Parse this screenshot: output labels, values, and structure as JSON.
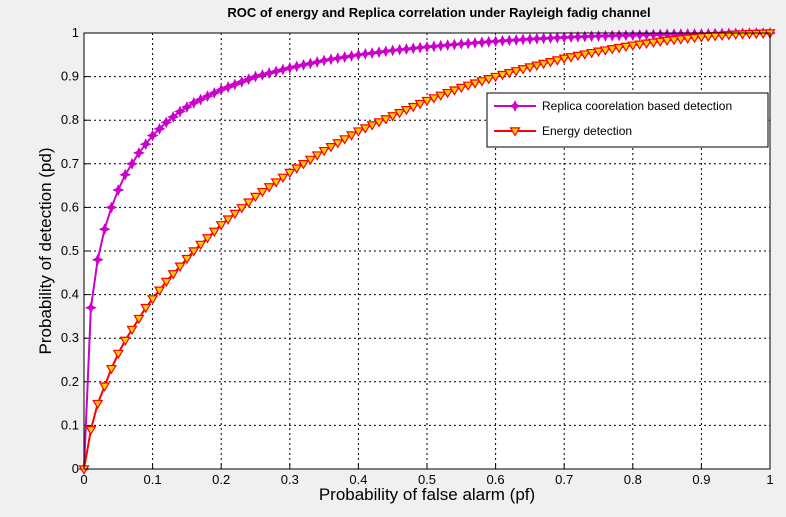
{
  "chart_data": {
    "type": "line",
    "title": "ROC  of energy and Replica correlation under Rayleigh fadig channel",
    "xlabel": "Probability of false alarm (pf)",
    "ylabel": "Probability of detection (pd)",
    "xlim": [
      0,
      1
    ],
    "ylim": [
      0,
      1
    ],
    "xticks": [
      "0",
      "0.1",
      "0.2",
      "0.3",
      "0.4",
      "0.5",
      "0.6",
      "0.7",
      "0.8",
      "0.9",
      "1"
    ],
    "yticks": [
      "0",
      "0.1",
      "0.2",
      "0.3",
      "0.4",
      "0.5",
      "0.6",
      "0.7",
      "0.8",
      "0.9",
      "1"
    ],
    "grid": true,
    "legend_position": "upper-right",
    "series": [
      {
        "name": "Replica coorelation based detection",
        "color": "#cc00cc",
        "marker": "star",
        "x": [
          0,
          0.01,
          0.02,
          0.03,
          0.04,
          0.05,
          0.06,
          0.07,
          0.08,
          0.09,
          0.1,
          0.12,
          0.14,
          0.16,
          0.18,
          0.2,
          0.25,
          0.3,
          0.35,
          0.4,
          0.45,
          0.5,
          0.55,
          0.6,
          0.65,
          0.7,
          0.75,
          0.8,
          0.85,
          0.9,
          0.95,
          1
        ],
        "y": [
          0,
          0.37,
          0.48,
          0.55,
          0.6,
          0.64,
          0.675,
          0.7,
          0.725,
          0.745,
          0.765,
          0.795,
          0.82,
          0.84,
          0.855,
          0.87,
          0.9,
          0.92,
          0.937,
          0.95,
          0.96,
          0.968,
          0.975,
          0.981,
          0.986,
          0.99,
          0.993,
          0.995,
          0.997,
          0.998,
          0.999,
          1
        ]
      },
      {
        "name": "Energy detection",
        "color": "#ff0000",
        "marker_fill": "#ffcc00",
        "marker": "triangle-down",
        "x": [
          0,
          0.01,
          0.02,
          0.03,
          0.04,
          0.05,
          0.06,
          0.07,
          0.08,
          0.09,
          0.1,
          0.12,
          0.14,
          0.16,
          0.18,
          0.2,
          0.25,
          0.3,
          0.35,
          0.4,
          0.45,
          0.5,
          0.55,
          0.6,
          0.65,
          0.7,
          0.75,
          0.8,
          0.85,
          0.9,
          0.95,
          1
        ],
        "y": [
          0,
          0.09,
          0.15,
          0.19,
          0.23,
          0.265,
          0.295,
          0.32,
          0.345,
          0.37,
          0.39,
          0.43,
          0.465,
          0.5,
          0.53,
          0.56,
          0.625,
          0.68,
          0.73,
          0.775,
          0.81,
          0.845,
          0.875,
          0.9,
          0.922,
          0.942,
          0.958,
          0.972,
          0.983,
          0.991,
          0.997,
          1
        ]
      }
    ]
  }
}
